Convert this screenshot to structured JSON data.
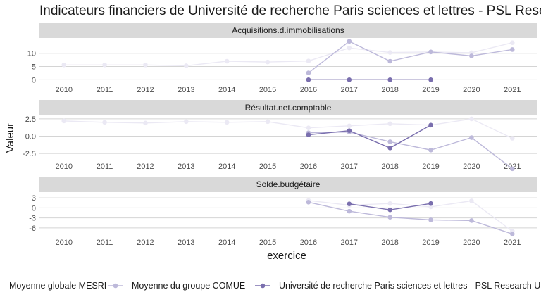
{
  "title": "Indicateurs financiers de Université de recherche Paris sciences et lettres - PSL Research University",
  "chart_data": {
    "type": "line",
    "x_label": "exercice",
    "y_label": "Valeur",
    "x": [
      2010,
      2011,
      2012,
      2013,
      2014,
      2015,
      2016,
      2017,
      2018,
      2019,
      2020,
      2021
    ],
    "legend": {
      "title": "",
      "position": "bottom",
      "entries": [
        "Moyenne globale MESRI",
        "Moyenne du groupe COMUE",
        "Université de recherche Paris sciences et lettres - PSL Research University"
      ]
    },
    "colors": {
      "Moyenne globale MESRI": "#ebe9f4",
      "Moyenne du groupe COMUE": "#bdb9da",
      "Université de recherche Paris sciences et lettres - PSL Research University": "#7a6fae"
    },
    "panels": [
      {
        "strip": "Acquisitions.d.immobilisations",
        "ylim": [
          -1.5,
          15.5
        ],
        "yticks": [
          0,
          5,
          10
        ],
        "ytick_labels": [
          "0",
          "5",
          "10"
        ],
        "series": [
          {
            "name": "Moyenne globale MESRI",
            "values": [
              5.6,
              5.6,
              5.6,
              5.3,
              7.0,
              6.7,
              7.1,
              12.0,
              10.3,
              10.5,
              10.2,
              14.0
            ]
          },
          {
            "name": "Moyenne du groupe COMUE",
            "values": [
              null,
              null,
              null,
              null,
              null,
              null,
              2.6,
              14.5,
              7.0,
              10.5,
              9.0,
              11.4
            ]
          },
          {
            "name": "Université de recherche Paris sciences et lettres - PSL Research University",
            "values": [
              null,
              null,
              null,
              null,
              null,
              null,
              0.0,
              0.0,
              0.0,
              0.0,
              null,
              null
            ]
          }
        ]
      },
      {
        "strip": "Résultat.net.comptable",
        "ylim": [
          -3.6,
          3.0
        ],
        "yticks": [
          2.5,
          0,
          -2.5
        ],
        "ytick_labels": [
          "2.5",
          "0.0",
          "-2.5"
        ],
        "series": [
          {
            "name": "Moyenne globale MESRI",
            "values": [
              2.2,
              2.0,
              1.9,
              2.1,
              2.0,
              2.1,
              1.2,
              1.5,
              1.8,
              1.6,
              2.5,
              -0.3
            ]
          },
          {
            "name": "Moyenne du groupe COMUE",
            "values": [
              null,
              null,
              null,
              null,
              null,
              null,
              0.5,
              0.6,
              -0.8,
              -2.0,
              -0.2,
              -4.7
            ]
          },
          {
            "name": "Université de recherche Paris sciences et lettres - PSL Research University",
            "values": [
              null,
              null,
              null,
              null,
              null,
              null,
              0.2,
              0.8,
              -1.7,
              1.6,
              null,
              null
            ]
          }
        ]
      },
      {
        "strip": "Solde.budgétaire",
        "ylim": [
          -7.5,
          4.5
        ],
        "yticks": [
          3,
          0,
          -3,
          -6
        ],
        "ytick_labels": [
          "3",
          "0",
          "-3",
          "-6"
        ],
        "series": [
          {
            "name": "Moyenne globale MESRI",
            "values": [
              null,
              null,
              null,
              null,
              null,
              null,
              2.2,
              0.8,
              1.3,
              0.3,
              2.1,
              -7.0
            ]
          },
          {
            "name": "Moyenne du groupe COMUE",
            "values": [
              null,
              null,
              null,
              null,
              null,
              null,
              1.7,
              -1.0,
              -2.8,
              -3.6,
              -3.8,
              -7.8
            ]
          },
          {
            "name": "Université de recherche Paris sciences et lettres - PSL Research University",
            "values": [
              null,
              null,
              null,
              null,
              null,
              null,
              null,
              1.2,
              -0.6,
              1.3,
              null,
              null
            ]
          }
        ]
      }
    ]
  }
}
